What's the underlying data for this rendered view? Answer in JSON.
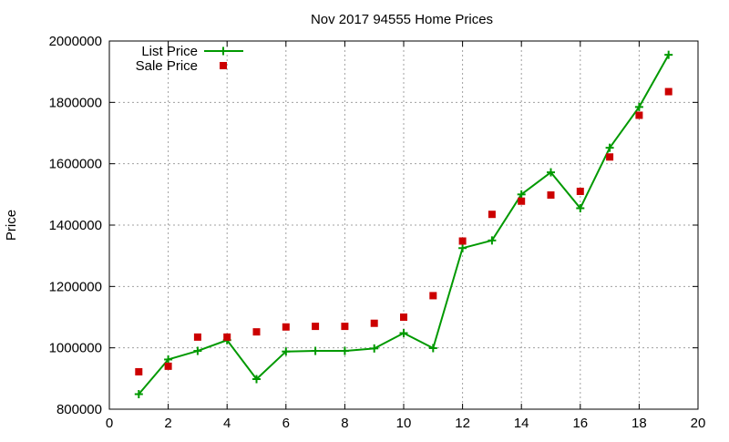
{
  "chart_data": {
    "type": "line",
    "title": "Nov 2017 94555 Home Prices",
    "xlabel": "",
    "ylabel": "Price",
    "xlim": [
      0,
      20
    ],
    "ylim": [
      800000,
      2000000
    ],
    "xticks": [
      "0",
      "2",
      "4",
      "6",
      "8",
      "10",
      "12",
      "14",
      "16",
      "18",
      "20"
    ],
    "yticks": [
      "800000",
      "1000000",
      "1200000",
      "1400000",
      "1600000",
      "1800000",
      "2000000"
    ],
    "grid": true,
    "legend_position": "top-left",
    "series": [
      {
        "name": "List Price",
        "style": "line+plus",
        "color": "#009900",
        "x": [
          1,
          2,
          3,
          4,
          5,
          6,
          7,
          8,
          9,
          10,
          11,
          12,
          13,
          14,
          15,
          16,
          17,
          18,
          19
        ],
        "y": [
          849000,
          962000,
          990000,
          1025000,
          898000,
          988000,
          990000,
          990000,
          998000,
          1048000,
          999000,
          1325000,
          1350000,
          1500000,
          1572000,
          1455000,
          1652000,
          1785000,
          1955000
        ]
      },
      {
        "name": "Sale Price",
        "style": "square",
        "color": "#cc0000",
        "x": [
          1,
          2,
          3,
          4,
          5,
          6,
          7,
          8,
          9,
          10,
          11,
          12,
          13,
          14,
          15,
          16,
          17,
          18,
          19
        ],
        "y": [
          922000,
          940000,
          1035000,
          1035000,
          1052000,
          1068000,
          1070000,
          1070000,
          1080000,
          1100000,
          1170000,
          1348000,
          1435000,
          1478000,
          1498000,
          1510000,
          1622000,
          1758000,
          1835000
        ]
      }
    ]
  }
}
